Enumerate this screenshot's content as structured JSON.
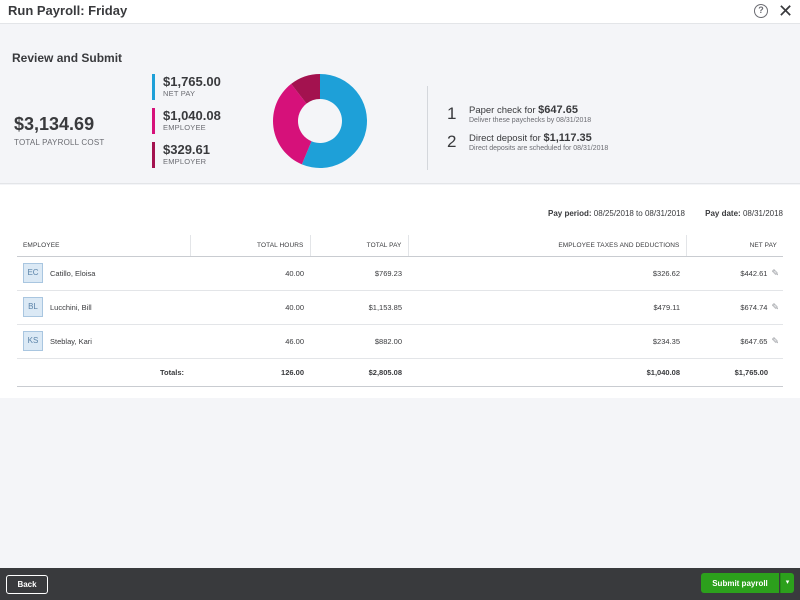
{
  "header": {
    "title": "Run Payroll: Friday",
    "help_icon": "?",
    "close_icon": "✕"
  },
  "summary": {
    "heading": "Review and Submit",
    "total_cost": "$3,134.69",
    "total_cost_label": "TOTAL PAYROLL COST",
    "net_pay": {
      "amount": "$1,765.00",
      "label": "NET PAY",
      "value": 1765.0,
      "color": "#1ea0d8"
    },
    "employee": {
      "amount": "$1,040.08",
      "label": "EMPLOYEE",
      "value": 1040.08,
      "color": "#d6117a"
    },
    "employer": {
      "amount": "$329.61",
      "label": "EMPLOYER",
      "value": 329.61,
      "color": "#a3124f"
    }
  },
  "delivery": [
    {
      "num": "1",
      "text": "Paper check for ",
      "amount": "$647.65",
      "note": "Deliver these paychecks by 08/31/2018"
    },
    {
      "num": "2",
      "text": "Direct deposit for ",
      "amount": "$1,117.35",
      "note": "Direct deposits are scheduled for 08/31/2018"
    }
  ],
  "period": {
    "pay_period_label": "Pay period:",
    "pay_period_value": "08/25/2018 to 08/31/2018",
    "pay_date_label": "Pay date:",
    "pay_date_value": "08/31/2018"
  },
  "table": {
    "headers": [
      "EMPLOYEE",
      "TOTAL HOURS",
      "TOTAL PAY",
      "EMPLOYEE TAXES AND DEDUCTIONS",
      "NET PAY"
    ],
    "rows": [
      {
        "initials": "EC",
        "name": "Catillo, Eloisa",
        "hours": "40.00",
        "pay": "$769.23",
        "taxes": "$326.62",
        "net": "$442.61"
      },
      {
        "initials": "BL",
        "name": "Lucchini, Bill",
        "hours": "40.00",
        "pay": "$1,153.85",
        "taxes": "$479.11",
        "net": "$674.74"
      },
      {
        "initials": "KS",
        "name": "Steblay, Kari",
        "hours": "46.00",
        "pay": "$882.00",
        "taxes": "$234.35",
        "net": "$647.65"
      }
    ],
    "totals": {
      "label": "Totals:",
      "hours": "126.00",
      "pay": "$2,805.08",
      "taxes": "$1,040.08",
      "net": "$1,765.00"
    }
  },
  "footer": {
    "back_label": "Back",
    "submit_label": "Submit payroll",
    "submit_caret": "▾",
    "submit_color": "#2ca01c"
  }
}
